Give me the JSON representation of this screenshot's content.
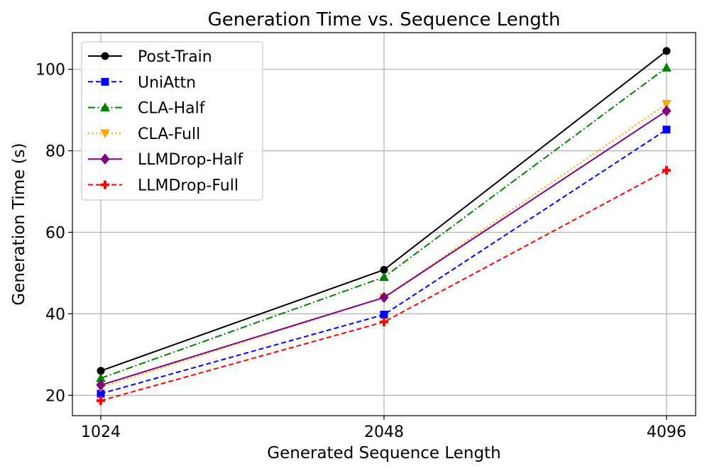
{
  "chart_data": {
    "type": "line",
    "title": "Generation Time vs. Sequence Length",
    "xlabel": "Generated Sequence Length",
    "ylabel": "Generation Time (s)",
    "categories": [
      "1024",
      "2048",
      "4096"
    ],
    "ylim": [
      15,
      109
    ],
    "yticks": [
      20,
      40,
      60,
      80,
      100
    ],
    "grid": true,
    "legend_position": "top-left",
    "series": [
      {
        "name": "Post-Train",
        "values": [
          26.0,
          50.8,
          104.5
        ],
        "color": "#000000",
        "dash": "solid",
        "marker": "circle"
      },
      {
        "name": "UniAttn",
        "values": [
          20.4,
          39.8,
          85.2
        ],
        "color": "#0000ff",
        "dash": "dashed",
        "marker": "square"
      },
      {
        "name": "CLA-Half",
        "values": [
          24.2,
          49.0,
          100.4
        ],
        "color": "#008000",
        "dash": "dashdot",
        "marker": "triangle-up"
      },
      {
        "name": "CLA-Full",
        "values": [
          22.0,
          44.0,
          91.5
        ],
        "color": "#ffa500",
        "dash": "dotted",
        "marker": "triangle-down"
      },
      {
        "name": "LLMDrop-Half",
        "values": [
          22.5,
          44.0,
          89.8
        ],
        "color": "#800080",
        "dash": "solid",
        "marker": "diamond"
      },
      {
        "name": "LLMDrop-Full",
        "values": [
          18.7,
          38.0,
          75.2
        ],
        "color": "#ff0000",
        "dash": "dashed",
        "marker": "plus"
      }
    ]
  }
}
